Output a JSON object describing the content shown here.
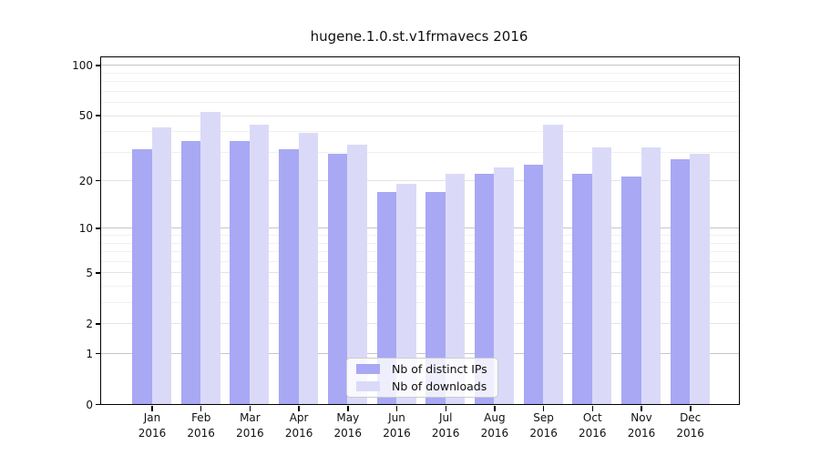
{
  "title": "hugene.1.0.st.v1frmavecs 2016",
  "legend": {
    "items": [
      {
        "label": "Nb of distinct IPs",
        "color": "#a8a8f5"
      },
      {
        "label": "Nb of downloads",
        "color": "#dadaf8"
      }
    ]
  },
  "y_axis": {
    "tick_values": [
      100,
      50,
      20,
      10,
      5,
      2,
      1,
      0
    ],
    "tick_labels": [
      "100",
      "50",
      "20",
      "10",
      "5",
      "2",
      "1",
      "0"
    ]
  },
  "x_axis": {
    "months": [
      "Jan",
      "Feb",
      "Mar",
      "Apr",
      "May",
      "Jun",
      "Jul",
      "Aug",
      "Sep",
      "Oct",
      "Nov",
      "Dec"
    ],
    "year": "2016"
  },
  "chart_data": {
    "type": "bar",
    "title": "hugene.1.0.st.v1frmavecs 2016",
    "xlabel": "",
    "ylabel": "",
    "categories": [
      "Jan 2016",
      "Feb 2016",
      "Mar 2016",
      "Apr 2016",
      "May 2016",
      "Jun 2016",
      "Jul 2016",
      "Aug 2016",
      "Sep 2016",
      "Oct 2016",
      "Nov 2016",
      "Dec 2016"
    ],
    "series": [
      {
        "name": "Nb of distinct IPs",
        "color": "#a8a8f5",
        "values": [
          31,
          35,
          35,
          31,
          29,
          17,
          17,
          22,
          25,
          22,
          21,
          27
        ]
      },
      {
        "name": "Nb of downloads",
        "color": "#dadaf8",
        "values": [
          42,
          52,
          44,
          39,
          33,
          19,
          22,
          24,
          44,
          32,
          32,
          29
        ]
      }
    ],
    "y_scale": "log1p",
    "ylim": [
      0,
      111
    ],
    "y_ticks_labeled": [
      0,
      1,
      2,
      5,
      10,
      20,
      50,
      100
    ],
    "y_ticks_major": [
      1,
      10,
      100
    ],
    "y_ticks_minor": [
      2,
      3,
      4,
      5,
      6,
      7,
      8,
      9,
      20,
      30,
      40,
      50,
      60,
      70,
      80,
      90
    ],
    "grid": true,
    "legend_position": "lower center"
  }
}
